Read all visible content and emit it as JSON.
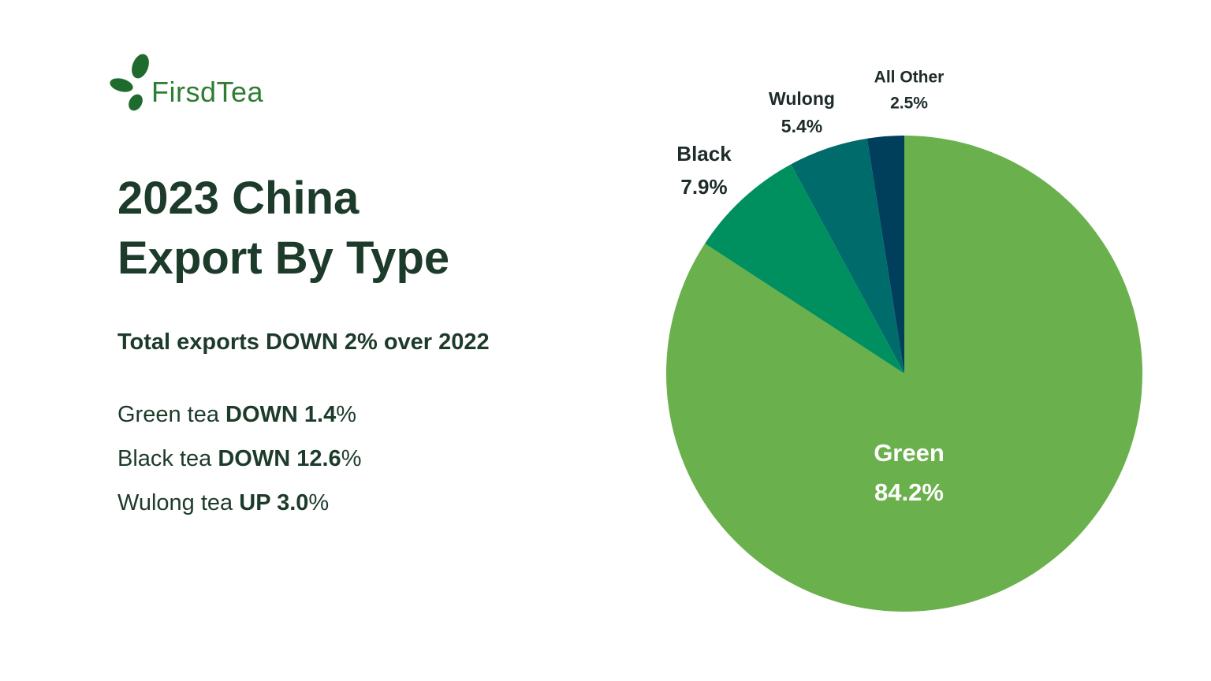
{
  "logo": "FirsdTea",
  "title": "2023 China Export By Type",
  "subtitle": "Total exports DOWN 2% over 2022",
  "stats": [
    {
      "label": "Green tea",
      "change": "DOWN 1.4",
      "unit": "%"
    },
    {
      "label": "Black tea",
      "change": "DOWN 12.6",
      "unit": "%"
    },
    {
      "label": "Wulong tea",
      "change": "UP 3.0",
      "unit": "%"
    }
  ],
  "chart_data": {
    "type": "pie",
    "categories": [
      "Green",
      "Black",
      "Wulong",
      "All Other"
    ],
    "values": [
      84.2,
      7.9,
      5.4,
      2.5
    ],
    "value_labels": [
      "84.2%",
      "7.9%",
      "5.4%",
      "2.5%"
    ],
    "colors": [
      "#6ab04c",
      "#00905f",
      "#006b6b",
      "#003f5c"
    ]
  }
}
